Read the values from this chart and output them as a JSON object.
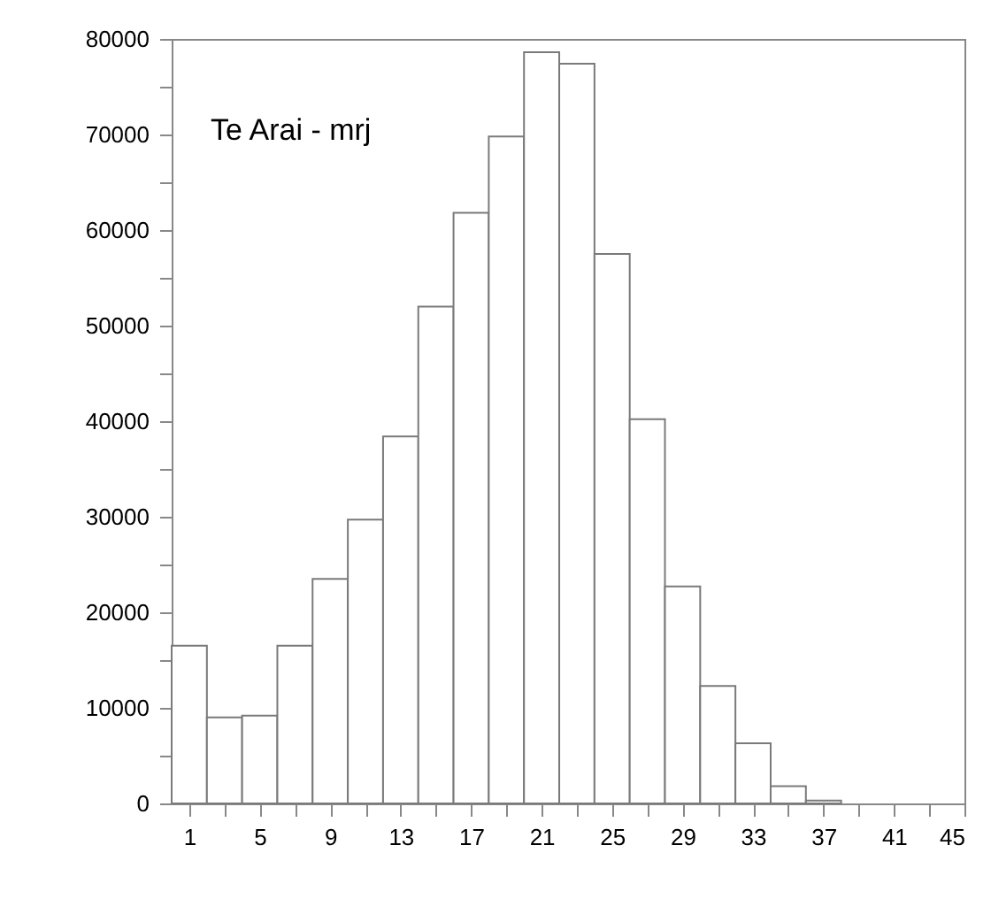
{
  "chart_data": {
    "type": "histogram",
    "annotations": [
      "Te Arai - mrj"
    ],
    "bins": [
      0,
      2,
      4,
      6,
      8,
      10,
      12,
      14,
      16,
      18,
      20,
      22,
      24,
      26,
      28,
      30,
      32,
      34,
      36,
      38
    ],
    "values": [
      16500,
      9000,
      9200,
      16500,
      23500,
      29700,
      38400,
      52000,
      61800,
      69800,
      78600,
      77400,
      57500,
      40200,
      22700,
      12300,
      6300,
      1800,
      300
    ],
    "color": "#ffffff",
    "xlim": [
      0,
      45
    ],
    "ylim": [
      0,
      80000
    ],
    "xticks": [
      1,
      {
        "value": 3,
        "label": null
      },
      5,
      {
        "value": 7,
        "label": null
      },
      9,
      {
        "value": 11,
        "label": null
      },
      13,
      {
        "value": 15,
        "label": null
      },
      17,
      {
        "value": 19,
        "label": null
      },
      21,
      {
        "value": 23,
        "label": null
      },
      25,
      {
        "value": 27,
        "label": null
      },
      29,
      {
        "value": 31,
        "label": null
      },
      33,
      {
        "value": 35,
        "label": null
      },
      37,
      {
        "value": 39,
        "label": null
      },
      41,
      {
        "value": 43,
        "label": null
      },
      45
    ],
    "yticks": [
      0,
      {
        "value": 5000,
        "label": null
      },
      10000,
      {
        "value": 15000,
        "label": null
      },
      20000,
      {
        "value": 25000,
        "label": null
      },
      30000,
      {
        "value": 35000,
        "label": null
      },
      40000,
      {
        "value": 45000,
        "label": null
      },
      50000,
      {
        "value": 55000,
        "label": null
      },
      60000,
      {
        "value": 65000,
        "label": null
      },
      70000,
      {
        "value": 75000,
        "label": null
      },
      80000
    ],
    "grid": false
  }
}
